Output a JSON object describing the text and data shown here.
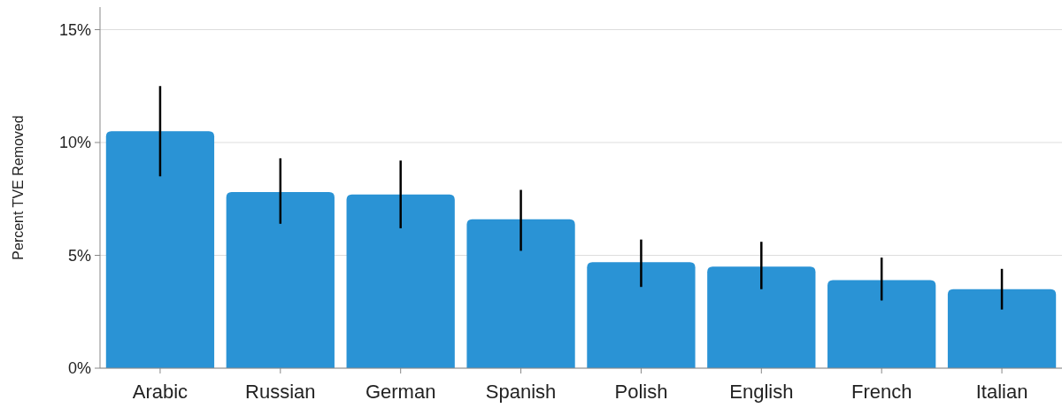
{
  "chart_data": {
    "type": "bar",
    "ylabel": "Percent TVE Removed",
    "categories": [
      "Arabic",
      "Russian",
      "German",
      "Spanish",
      "Polish",
      "English",
      "French",
      "Italian"
    ],
    "values": [
      10.5,
      7.8,
      7.7,
      6.6,
      4.7,
      4.5,
      3.9,
      3.5
    ],
    "errors": [
      [
        8.5,
        12.5
      ],
      [
        6.4,
        9.3
      ],
      [
        6.2,
        9.2
      ],
      [
        5.2,
        7.9
      ],
      [
        3.6,
        5.7
      ],
      [
        3.5,
        5.6
      ],
      [
        3.0,
        4.9
      ],
      [
        2.6,
        4.4
      ]
    ],
    "color": "#2a93d5",
    "ylim": [
      0,
      16
    ],
    "yticks": [
      {
        "value": 0,
        "label": "0%"
      },
      {
        "value": 5,
        "label": "5%"
      },
      {
        "value": 10,
        "label": "10%"
      },
      {
        "value": 15,
        "label": "15%"
      }
    ],
    "grid": "y"
  }
}
